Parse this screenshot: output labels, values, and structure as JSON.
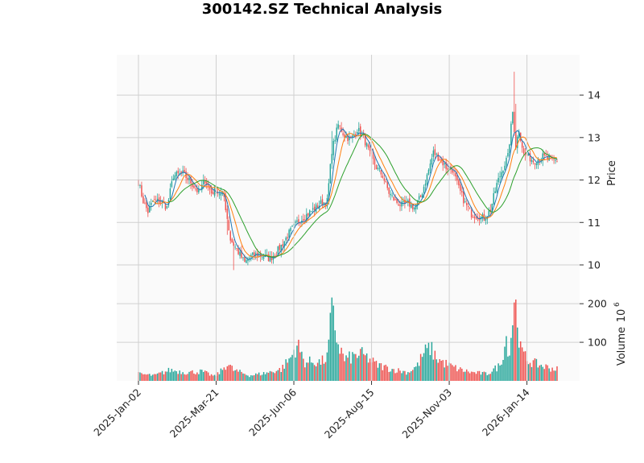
{
  "chart_data": {
    "type": "candlestick",
    "title": "300142.SZ Technical Analysis",
    "price_panel": {
      "ylabel": "Price",
      "ylim": [
        9.45,
        14.95
      ],
      "yticks": [
        10,
        11,
        12,
        13,
        14
      ],
      "moving_averages": [
        {
          "color": "#1f77b4"
        },
        {
          "color": "#ff7f0e"
        },
        {
          "color": "#2ca02c"
        }
      ],
      "up_color": "#26a69a",
      "down_color": "#ef5350"
    },
    "volume_panel": {
      "ylabel": "Volume",
      "exponent_label": "10",
      "exponent_power": "6",
      "ylim": [
        0,
        240
      ],
      "yticks": [
        100,
        200
      ]
    },
    "x_ticks": [
      {
        "label": "2025-Jan-02",
        "index": 0
      },
      {
        "label": "2025-Mar-21",
        "index": 49
      },
      {
        "label": "2025-Jun-06",
        "index": 98
      },
      {
        "label": "2025-Aug-15",
        "index": 147
      },
      {
        "label": "2025-Nov-03",
        "index": 196
      },
      {
        "label": "2026-Jan-14",
        "index": 245
      }
    ],
    "trading_days": 265,
    "close_anchors": [
      [
        0,
        11.95
      ],
      [
        3,
        11.5
      ],
      [
        6,
        11.25
      ],
      [
        9,
        11.5
      ],
      [
        14,
        11.5
      ],
      [
        18,
        11.35
      ],
      [
        22,
        12.1
      ],
      [
        28,
        12.15
      ],
      [
        33,
        11.95
      ],
      [
        38,
        11.7
      ],
      [
        42,
        12.0
      ],
      [
        46,
        11.7
      ],
      [
        49,
        11.75
      ],
      [
        54,
        11.6
      ],
      [
        58,
        10.6
      ],
      [
        63,
        10.3
      ],
      [
        67,
        10.05
      ],
      [
        71,
        10.2
      ],
      [
        75,
        10.25
      ],
      [
        79,
        10.2
      ],
      [
        83,
        10.15
      ],
      [
        87,
        10.3
      ],
      [
        91,
        10.5
      ],
      [
        95,
        10.75
      ],
      [
        100,
        11.0
      ],
      [
        105,
        11.15
      ],
      [
        110,
        11.3
      ],
      [
        115,
        11.45
      ],
      [
        119,
        11.5
      ],
      [
        122,
        12.7
      ],
      [
        126,
        13.3
      ],
      [
        130,
        13.05
      ],
      [
        134,
        12.95
      ],
      [
        138,
        13.2
      ],
      [
        142,
        13.0
      ],
      [
        146,
        12.6
      ],
      [
        150,
        12.3
      ],
      [
        154,
        12.1
      ],
      [
        158,
        11.7
      ],
      [
        162,
        11.5
      ],
      [
        166,
        11.4
      ],
      [
        170,
        11.45
      ],
      [
        174,
        11.35
      ],
      [
        178,
        11.6
      ],
      [
        182,
        12.1
      ],
      [
        186,
        12.65
      ],
      [
        190,
        12.5
      ],
      [
        194,
        12.3
      ],
      [
        198,
        12.25
      ],
      [
        202,
        11.8
      ],
      [
        206,
        11.45
      ],
      [
        210,
        11.2
      ],
      [
        214,
        11.15
      ],
      [
        218,
        11.1
      ],
      [
        222,
        11.3
      ],
      [
        226,
        11.9
      ],
      [
        230,
        12.3
      ],
      [
        233,
        12.55
      ],
      [
        236,
        13.6
      ],
      [
        238,
        12.8
      ],
      [
        240,
        13.2
      ],
      [
        243,
        12.6
      ],
      [
        246,
        12.55
      ],
      [
        249,
        12.45
      ],
      [
        252,
        12.5
      ],
      [
        255,
        12.55
      ],
      [
        258,
        12.5
      ],
      [
        261,
        12.45
      ],
      [
        264,
        12.45
      ]
    ],
    "volume_anchors": [
      [
        0,
        18
      ],
      [
        10,
        14
      ],
      [
        20,
        28
      ],
      [
        30,
        22
      ],
      [
        40,
        24
      ],
      [
        48,
        12
      ],
      [
        52,
        25
      ],
      [
        56,
        45
      ],
      [
        60,
        28
      ],
      [
        70,
        14
      ],
      [
        80,
        20
      ],
      [
        90,
        30
      ],
      [
        96,
        60
      ],
      [
        100,
        95
      ],
      [
        105,
        48
      ],
      [
        110,
        50
      ],
      [
        115,
        48
      ],
      [
        119,
        60
      ],
      [
        122,
        180
      ],
      [
        126,
        95
      ],
      [
        130,
        55
      ],
      [
        135,
        62
      ],
      [
        140,
        70
      ],
      [
        145,
        58
      ],
      [
        150,
        42
      ],
      [
        160,
        30
      ],
      [
        170,
        22
      ],
      [
        176,
        40
      ],
      [
        180,
        72
      ],
      [
        184,
        85
      ],
      [
        188,
        60
      ],
      [
        192,
        48
      ],
      [
        196,
        40
      ],
      [
        202,
        30
      ],
      [
        210,
        22
      ],
      [
        220,
        18
      ],
      [
        228,
        40
      ],
      [
        232,
        110
      ],
      [
        234,
        70
      ],
      [
        237,
        210
      ],
      [
        239,
        165
      ],
      [
        241,
        80
      ],
      [
        245,
        55
      ],
      [
        250,
        45
      ],
      [
        258,
        35
      ],
      [
        264,
        30
      ]
    ]
  }
}
